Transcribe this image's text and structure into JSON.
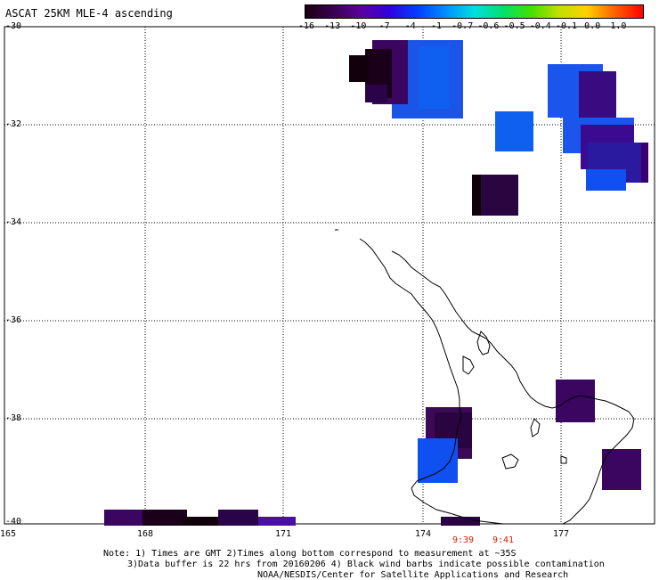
{
  "title": "ASCAT 25KM MLE-4 ascending",
  "colorbar": {
    "labels": [
      "-16",
      "-13",
      "-10",
      "-7",
      "-4",
      "-1",
      "-0.7",
      "-0.6",
      "-0.5",
      "-0.4",
      "-0.1",
      "0.0",
      "1.0"
    ],
    "colors": [
      "#1a0010",
      "#3a0050",
      "#5a00a0",
      "#3000e0",
      "#0040ff",
      "#0090ff",
      "#00e0e0",
      "#00e070",
      "#40e000",
      "#c0e000",
      "#ffd000",
      "#ff6000",
      "#ff0000"
    ]
  },
  "axes": {
    "y_ticks": [
      "-30",
      "-32",
      "-34",
      "-36",
      "-38",
      "-40"
    ],
    "x_ticks": [
      "165",
      "168",
      "171",
      "174",
      "177"
    ]
  },
  "times": [
    "9:39",
    "9:41"
  ],
  "notes": {
    "line1": "Note: 1) Times are GMT 2)Times along bottom correspond to measurement at ~35S",
    "line2": "3)Data buffer is 22 hrs from 20160206 4) Black wind barbs indicate possible contamination",
    "line3": "NOAA/NESDIS/Center for Satellite Applications and Research"
  }
}
